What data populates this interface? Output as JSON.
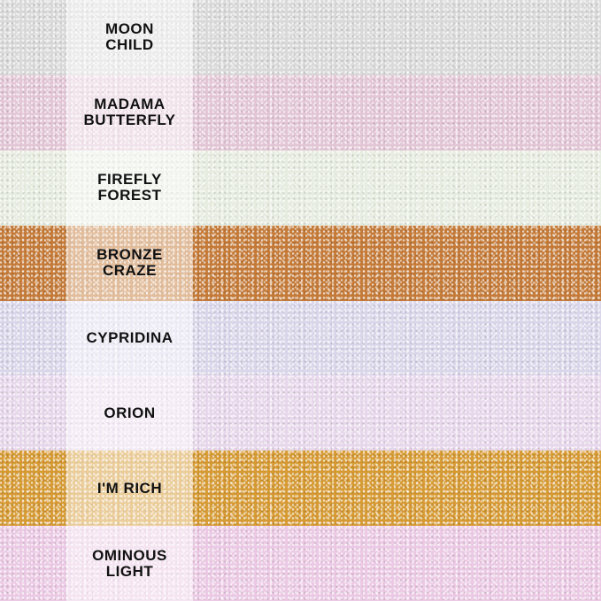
{
  "swatches": [
    {
      "name": "MOON\nCHILD",
      "color": "#d9d9d9"
    },
    {
      "name": "MADAMA\nBUTTERFLY",
      "color": "#e3c6d6"
    },
    {
      "name": "FIREFLY\nFOREST",
      "color": "#e6ecdf"
    },
    {
      "name": "BRONZE\nCRAZE",
      "color": "#c47a38"
    },
    {
      "name": "CYPRIDINA",
      "color": "#dad6ea"
    },
    {
      "name": "ORION",
      "color": "#e7d7eb"
    },
    {
      "name": "I'M RICH",
      "color": "#d69a34"
    },
    {
      "name": "OMINOUS\nLIGHT",
      "color": "#ebc9e4"
    }
  ]
}
